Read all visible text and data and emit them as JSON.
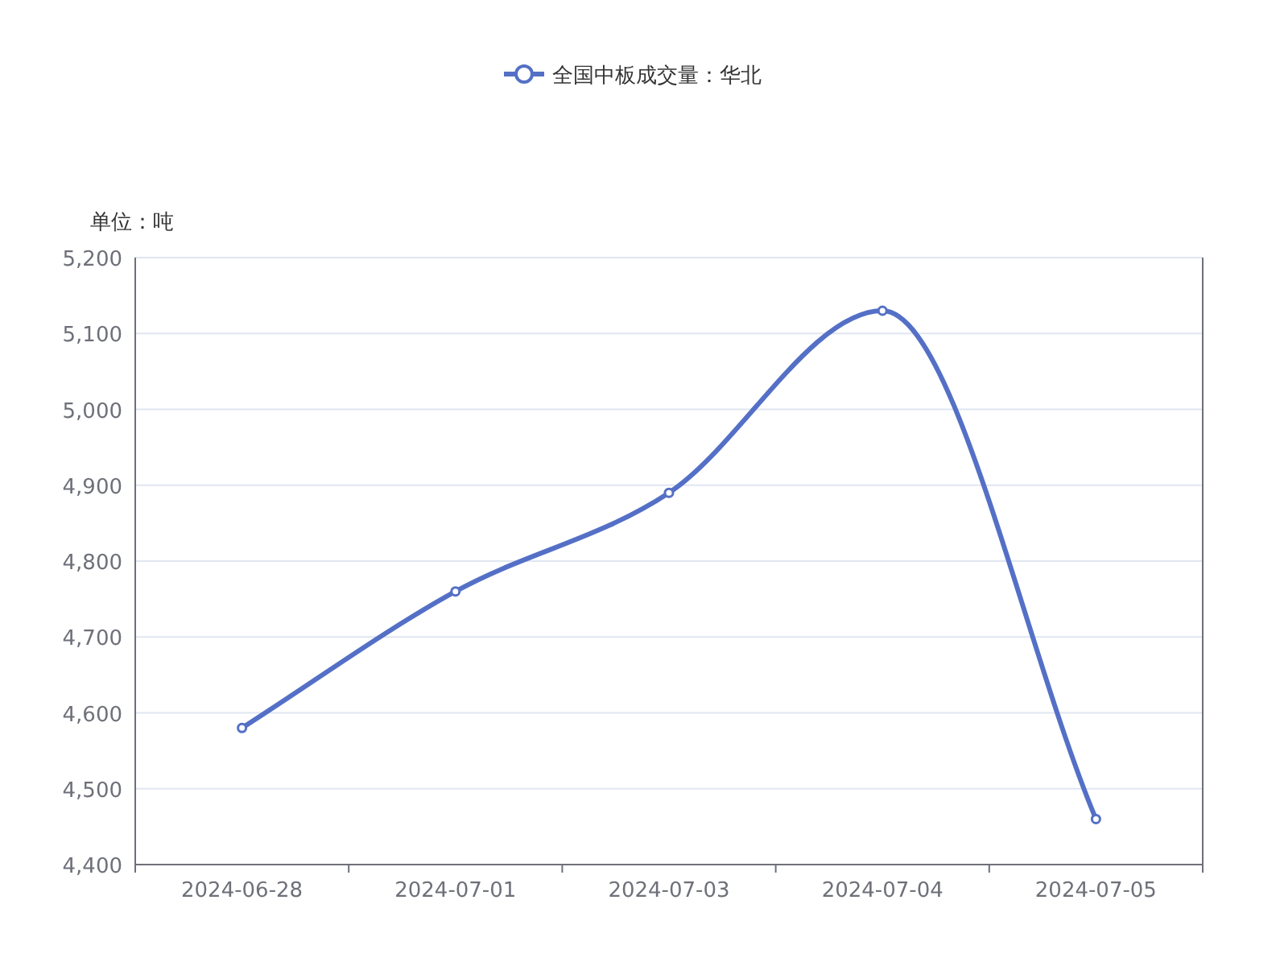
{
  "chart_data": {
    "type": "line",
    "ylabel": "单位：吨",
    "categories": [
      "2024-06-28",
      "2024-07-01",
      "2024-07-03",
      "2024-07-04",
      "2024-07-05"
    ],
    "series": [
      {
        "name": "全国中板成交量：华北",
        "color": "#5470c6",
        "values": [
          4580,
          4760,
          4890,
          5130,
          4460
        ]
      }
    ],
    "ylim": [
      4400,
      5200
    ],
    "yticks": [
      {
        "value": 4400,
        "label": "4,400"
      },
      {
        "value": 4500,
        "label": "4,500"
      },
      {
        "value": 4600,
        "label": "4,600"
      },
      {
        "value": 4700,
        "label": "4,700"
      },
      {
        "value": 4800,
        "label": "4,800"
      },
      {
        "value": 4900,
        "label": "4,900"
      },
      {
        "value": 5000,
        "label": "5,000"
      },
      {
        "value": 5100,
        "label": "5,100"
      },
      {
        "value": 5200,
        "label": "5,200"
      }
    ],
    "grid": "y",
    "legend": "top",
    "marker": "circle"
  }
}
